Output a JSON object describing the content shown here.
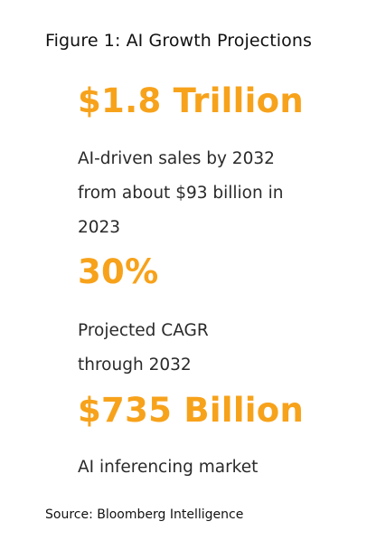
{
  "figure": {
    "title": "Figure 1: AI Growth Projections",
    "accent_color": "#f7a21b",
    "stats": [
      {
        "value": "$1.8 Trillion",
        "description_lines": [
          "AI-driven sales by 2032",
          "from about $93 billion in",
          "2023"
        ]
      },
      {
        "value": "30%",
        "description_lines": [
          "Projected CAGR",
          "through 2032"
        ]
      },
      {
        "value": "$735 Billion",
        "description_lines": [
          "AI inferencing market"
        ]
      }
    ],
    "source": "Source: Bloomberg Intelligence"
  }
}
